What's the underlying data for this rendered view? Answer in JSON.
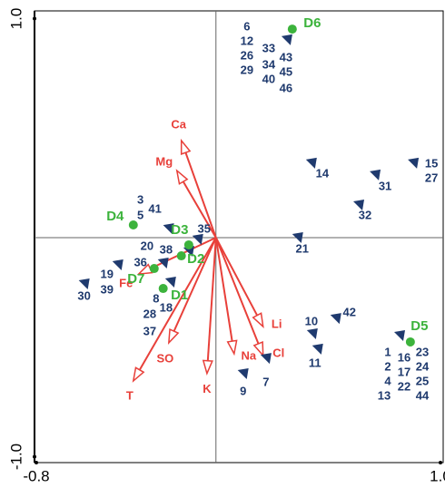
{
  "chart_data": {
    "type": "biplot",
    "xlim": [
      -0.8,
      1.0
    ],
    "ylim": [
      -1.0,
      1.0
    ],
    "xticks": [
      -0.8,
      {
        "value": 1.0,
        "label": "1.0"
      }
    ],
    "yticks": [
      {
        "value": 1.0,
        "label": "1.0"
      },
      {
        "value": -1.0,
        "label": "-1.0"
      }
    ],
    "species": {
      "color": "#1f3a6e",
      "points": [
        {
          "labels": [
            "6",
            "12",
            "26",
            "29",
            "33",
            "34",
            "40",
            "43",
            "45",
            "46"
          ],
          "x": 0.316,
          "y": 0.903
        },
        {
          "labels": [
            "14"
          ],
          "x": 0.425,
          "y": 0.34
        },
        {
          "labels": [
            "31"
          ],
          "x": 0.709,
          "y": 0.286
        },
        {
          "labels": [
            "15",
            "27"
          ],
          "x": 0.879,
          "y": 0.34
        },
        {
          "labels": [
            "32"
          ],
          "x": 0.636,
          "y": 0.149
        },
        {
          "labels": [
            "3",
            "41",
            "5"
          ],
          "x": -0.211,
          "y": 0.041
        },
        {
          "labels": [
            "35"
          ],
          "x": -0.081,
          "y": -0.008
        },
        {
          "labels": [
            "21"
          ],
          "x": 0.364,
          "y": 0.0
        },
        {
          "labels": [
            "20",
            "38"
          ],
          "x": -0.121,
          "y": -0.062
        },
        {
          "labels": [
            "36"
          ],
          "x": -0.235,
          "y": -0.116
        },
        {
          "labels": [
            "19",
            "39"
          ],
          "x": -0.437,
          "y": -0.124
        },
        {
          "labels": [
            "30"
          ],
          "x": -0.587,
          "y": -0.211
        },
        {
          "labels": [
            "8",
            "18",
            "28",
            "37"
          ],
          "x": -0.202,
          "y": -0.203
        },
        {
          "labels": [
            "42"
          ],
          "x": 0.534,
          "y": -0.369
        },
        {
          "labels": [
            "10"
          ],
          "x": 0.429,
          "y": -0.439
        },
        {
          "labels": [
            "11"
          ],
          "x": 0.453,
          "y": -0.509
        },
        {
          "labels": [
            "9"
          ],
          "x": 0.121,
          "y": -0.621
        },
        {
          "labels": [
            "7"
          ],
          "x": 0.223,
          "y": -0.551
        },
        {
          "labels": [
            "1",
            "2",
            "4",
            "13",
            "16",
            "17",
            "22",
            "23",
            "24",
            "25",
            "44"
          ],
          "x": 0.818,
          "y": -0.447
        }
      ]
    },
    "sites": {
      "color": "#3cb33c",
      "points": [
        {
          "name": "D6",
          "x": 0.34,
          "y": 0.952
        },
        {
          "name": "D4",
          "x": -0.368,
          "y": 0.058
        },
        {
          "name": "D3",
          "x": -0.121,
          "y": -0.033
        },
        {
          "name": "D2",
          "x": -0.154,
          "y": -0.083
        },
        {
          "name": "D7",
          "x": -0.275,
          "y": -0.141
        },
        {
          "name": "D1",
          "x": -0.235,
          "y": -0.232
        },
        {
          "name": "D5",
          "x": 0.866,
          "y": -0.476
        }
      ]
    },
    "variables": {
      "color": "#e8403a",
      "arrows": [
        {
          "name": "Ca",
          "x": -0.154,
          "y": 0.443
        },
        {
          "name": "Mg",
          "x": -0.174,
          "y": 0.306
        },
        {
          "name": "Fe",
          "x": -0.344,
          "y": -0.166
        },
        {
          "name": "SO",
          "x": -0.21,
          "y": -0.48
        },
        {
          "name": "T",
          "x": -0.368,
          "y": -0.654
        },
        {
          "name": "K",
          "x": -0.04,
          "y": -0.62
        },
        {
          "name": "Na",
          "x": 0.081,
          "y": -0.53
        },
        {
          "name": "Cl",
          "x": 0.21,
          "y": -0.538
        },
        {
          "name": "Li",
          "x": 0.21,
          "y": -0.406
        }
      ]
    }
  }
}
